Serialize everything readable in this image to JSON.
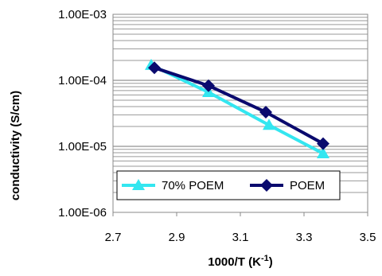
{
  "chart_data": {
    "type": "line",
    "xlabel": "1000/T (K",
    "xlabel_sup": "-1",
    "xlabel_suffix": ")",
    "ylabel": "conductivity (S/cm)",
    "xlim": [
      2.7,
      3.5
    ],
    "x_ticks": [
      "2.7",
      "2.9",
      "3.1",
      "3.3",
      "3.5"
    ],
    "y_scale": "log",
    "ylim": [
      1e-06,
      0.001
    ],
    "y_ticks": [
      "1.00E-06",
      "1.00E-05",
      "1.00E-04",
      "1.00E-03"
    ],
    "grid": "horizontal",
    "legend_position": "lower-left",
    "series": [
      {
        "name": "70% POEM",
        "color": "#33e6f0",
        "marker": "triangle",
        "x": [
          2.82,
          3.0,
          3.19,
          3.36
        ],
        "y": [
          0.00017,
          6.6e-05,
          2.1e-05,
          7.8e-06
        ]
      },
      {
        "name": "POEM",
        "color": "#0a0a6e",
        "marker": "diamond",
        "x": [
          2.83,
          3.0,
          3.18,
          3.36
        ],
        "y": [
          0.000155,
          8.3e-05,
          3.3e-05,
          1.1e-05
        ]
      }
    ]
  }
}
